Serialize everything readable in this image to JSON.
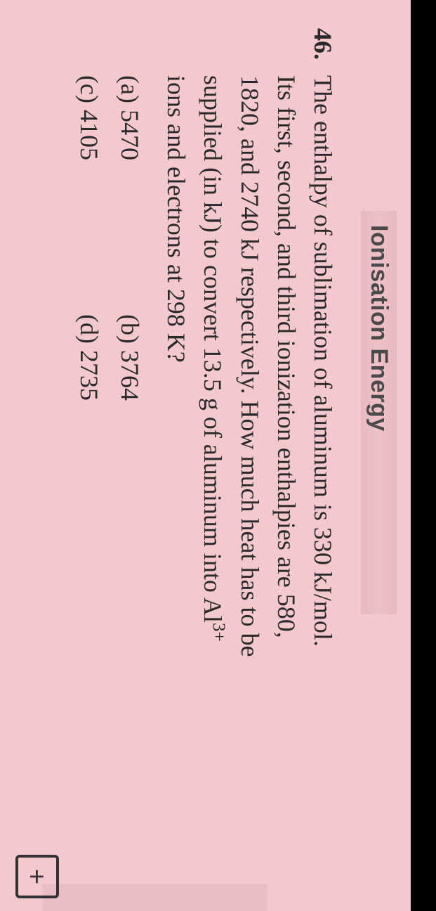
{
  "section": {
    "title": "Ionisation Energy"
  },
  "question": {
    "number": "46.",
    "text_line1": "The enthalpy of sublimation of aluminum is 330 kJ/mol.",
    "text_line2": "Its first, second, and third ionization enthalpies are 580,",
    "text_line3": "1820, and 2740 kJ respectively. How much heat has to be",
    "text_line4_a": "supplied (in kJ) to convert 13.5 g of aluminum into Al",
    "text_line4_sup": "3+",
    "text_line5": "ions and electrons at 298 K?"
  },
  "options": {
    "a": "(a) 5470",
    "b": "(b) 3764",
    "c": "(c) 4105",
    "d": "(d) 2735"
  },
  "icons": {
    "plus": "+"
  }
}
